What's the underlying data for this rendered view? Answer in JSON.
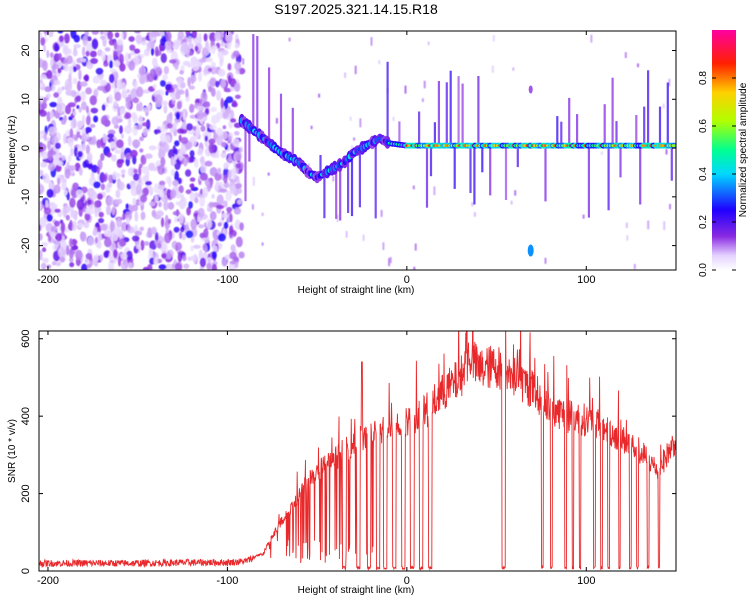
{
  "title": "S197.2025.321.14.15.R18",
  "chart_data": [
    {
      "type": "heatmap",
      "name": "spectrogram",
      "xlabel": "Height of straight line (km)",
      "ylabel": "Frequency (Hz)",
      "xlim": [
        -205,
        150
      ],
      "ylim": [
        -25,
        24
      ],
      "xticks": [
        -200,
        -100,
        0,
        100
      ],
      "yticks": [
        -20,
        -10,
        0,
        10,
        20
      ],
      "noise_region": [
        -205,
        -92
      ],
      "ridge": [
        [
          -90,
          5
        ],
        [
          -80,
          2
        ],
        [
          -70,
          -1
        ],
        [
          -60,
          -3
        ],
        [
          -55,
          -5
        ],
        [
          -50,
          -6
        ],
        [
          -45,
          -5
        ],
        [
          -40,
          -4
        ],
        [
          -35,
          -3
        ],
        [
          -30,
          -1
        ],
        [
          -25,
          0
        ],
        [
          -20,
          1
        ],
        [
          -15,
          2
        ],
        [
          -10,
          1
        ],
        [
          0,
          0.5
        ],
        [
          20,
          0.5
        ],
        [
          60,
          0.5
        ],
        [
          100,
          0.5
        ],
        [
          150,
          0.5
        ]
      ],
      "colorbar": {
        "label": "Normalized spectral amplitude",
        "ticks": [
          0.0,
          0.2,
          0.4,
          0.6,
          0.8
        ],
        "range": [
          0.0,
          1.0
        ]
      }
    },
    {
      "type": "line",
      "name": "snr",
      "xlabel": "Height of straight line (km)",
      "ylabel": "SNR (10 * v/v)",
      "xlim": [
        -205,
        150
      ],
      "ylim": [
        0,
        620
      ],
      "xticks": [
        -200,
        -100,
        0,
        100
      ],
      "yticks": [
        0,
        200,
        400,
        600
      ],
      "color": "#e8282a",
      "envelope": [
        [
          -205,
          20
        ],
        [
          -150,
          20
        ],
        [
          -120,
          22
        ],
        [
          -100,
          22
        ],
        [
          -90,
          25
        ],
        [
          -80,
          45
        ],
        [
          -70,
          130
        ],
        [
          -60,
          200
        ],
        [
          -50,
          260
        ],
        [
          -40,
          290
        ],
        [
          -30,
          330
        ],
        [
          -20,
          350
        ],
        [
          -10,
          370
        ],
        [
          0,
          390
        ],
        [
          10,
          410
        ],
        [
          20,
          460
        ],
        [
          30,
          500
        ],
        [
          35,
          560
        ],
        [
          40,
          520
        ],
        [
          50,
          530
        ],
        [
          60,
          500
        ],
        [
          70,
          470
        ],
        [
          80,
          420
        ],
        [
          90,
          400
        ],
        [
          100,
          390
        ],
        [
          110,
          370
        ],
        [
          120,
          340
        ],
        [
          130,
          310
        ],
        [
          140,
          260
        ],
        [
          145,
          300
        ],
        [
          150,
          340
        ]
      ],
      "dropouts": [
        [
          -36,
          -34
        ],
        [
          -28,
          -26
        ],
        [
          -22,
          -20
        ],
        [
          -17,
          -15
        ],
        [
          -13,
          -11
        ],
        [
          -8,
          -6
        ],
        [
          -3,
          -1
        ],
        [
          2,
          4
        ],
        [
          7,
          9
        ],
        [
          12,
          14
        ],
        [
          53,
          55
        ],
        [
          75,
          76
        ],
        [
          80,
          81
        ],
        [
          88,
          89
        ],
        [
          92,
          93
        ],
        [
          96,
          97
        ],
        [
          104,
          105
        ],
        [
          108,
          109
        ],
        [
          112,
          113
        ],
        [
          118,
          119
        ],
        [
          124,
          125
        ],
        [
          128,
          129
        ],
        [
          134,
          135
        ],
        [
          140,
          141
        ]
      ]
    }
  ]
}
